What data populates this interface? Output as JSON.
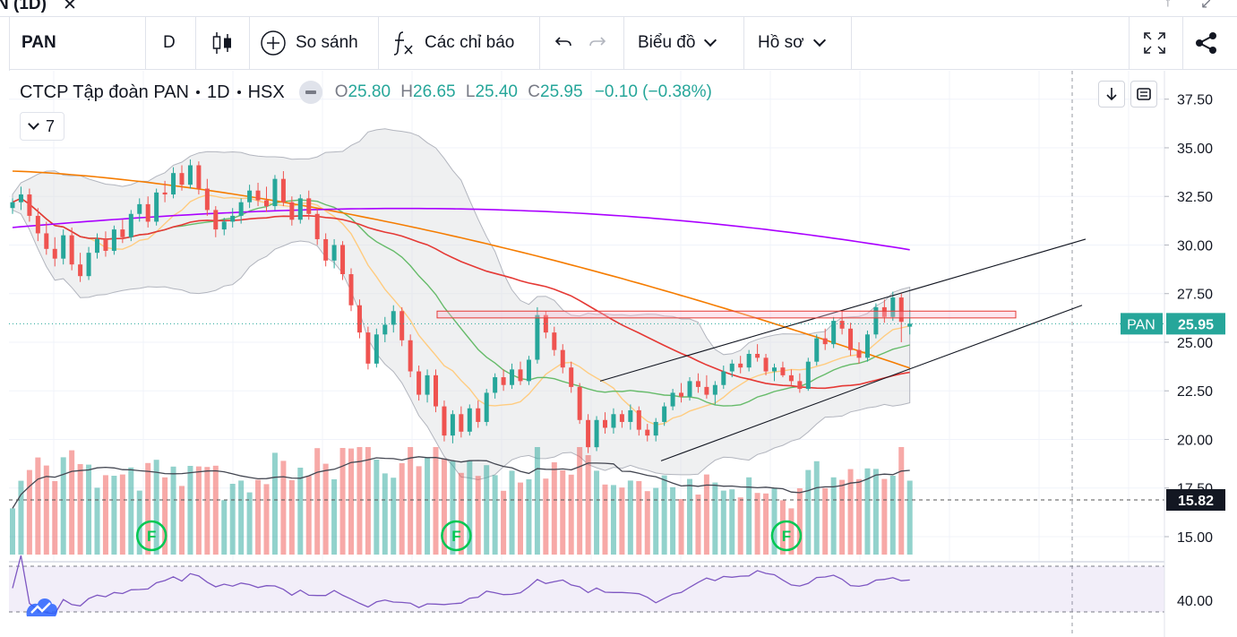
{
  "window": {
    "title": "N (1D)",
    "close_label": "✕",
    "ctrl_a": "↑",
    "ctrl_b": "↙"
  },
  "toolbar": {
    "symbol": "PAN",
    "interval": "D",
    "compare_label": "So sánh",
    "indicators_label": "Các chỉ báo",
    "chart_label": "Biểu đồ",
    "profile_label": "Hồ sơ"
  },
  "legend": {
    "name": "CTCP Tập đoàn PAN",
    "interval": "1D",
    "exchange": "HSX",
    "o_label": "O",
    "o": "25.80",
    "h_label": "H",
    "h": "26.65",
    "l_label": "L",
    "l": "25.40",
    "c_label": "C",
    "c": "25.95",
    "change": "−0.10 (−0.38%)",
    "collapse_count": "7"
  },
  "chart_data": {
    "type": "candlestick",
    "symbol": "PAN",
    "last_price": 25.95,
    "last_price_label": "25.95",
    "volume_ma_label": "15.82",
    "ylim": [
      15.0,
      38.5
    ],
    "price_ticks": [
      "37.50",
      "35.00",
      "32.50",
      "30.00",
      "27.50",
      "25.00",
      "22.50",
      "20.00",
      "17.50",
      "15.00"
    ],
    "rsi_tick": "40.00",
    "event_marker_label": "F",
    "candles": [
      {
        "o": 31.9,
        "h": 32.4,
        "l": 31.6,
        "c": 32.2
      },
      {
        "o": 32.2,
        "h": 33.0,
        "l": 31.8,
        "c": 32.6
      },
      {
        "o": 32.6,
        "h": 32.9,
        "l": 31.2,
        "c": 31.5
      },
      {
        "o": 31.5,
        "h": 31.9,
        "l": 30.2,
        "c": 30.6
      },
      {
        "o": 30.6,
        "h": 31.2,
        "l": 29.5,
        "c": 29.8
      },
      {
        "o": 29.8,
        "h": 30.4,
        "l": 28.9,
        "c": 29.3
      },
      {
        "o": 29.3,
        "h": 30.8,
        "l": 29.0,
        "c": 30.5
      },
      {
        "o": 30.5,
        "h": 30.9,
        "l": 28.7,
        "c": 29.0
      },
      {
        "o": 29.0,
        "h": 29.6,
        "l": 28.1,
        "c": 28.4
      },
      {
        "o": 28.4,
        "h": 29.9,
        "l": 28.2,
        "c": 29.6
      },
      {
        "o": 29.6,
        "h": 30.6,
        "l": 29.3,
        "c": 30.3
      },
      {
        "o": 30.3,
        "h": 30.7,
        "l": 29.4,
        "c": 29.7
      },
      {
        "o": 29.7,
        "h": 31.0,
        "l": 29.5,
        "c": 30.8
      },
      {
        "o": 30.8,
        "h": 31.3,
        "l": 30.1,
        "c": 30.4
      },
      {
        "o": 30.4,
        "h": 31.8,
        "l": 30.2,
        "c": 31.6
      },
      {
        "o": 31.6,
        "h": 32.4,
        "l": 31.2,
        "c": 32.1
      },
      {
        "o": 32.1,
        "h": 32.5,
        "l": 30.9,
        "c": 31.2
      },
      {
        "o": 31.2,
        "h": 32.9,
        "l": 31.0,
        "c": 32.7
      },
      {
        "o": 32.7,
        "h": 33.3,
        "l": 32.2,
        "c": 32.6
      },
      {
        "o": 32.6,
        "h": 34.0,
        "l": 32.4,
        "c": 33.7
      },
      {
        "o": 33.7,
        "h": 34.1,
        "l": 32.8,
        "c": 33.1
      },
      {
        "o": 33.1,
        "h": 34.4,
        "l": 32.9,
        "c": 34.1
      },
      {
        "o": 34.1,
        "h": 34.3,
        "l": 32.6,
        "c": 32.9
      },
      {
        "o": 32.9,
        "h": 33.4,
        "l": 31.5,
        "c": 31.8
      },
      {
        "o": 31.8,
        "h": 32.0,
        "l": 30.4,
        "c": 30.8
      },
      {
        "o": 30.8,
        "h": 31.4,
        "l": 30.5,
        "c": 31.2
      },
      {
        "o": 31.2,
        "h": 31.9,
        "l": 30.9,
        "c": 31.5
      },
      {
        "o": 31.5,
        "h": 32.4,
        "l": 31.1,
        "c": 32.2
      },
      {
        "o": 32.2,
        "h": 33.1,
        "l": 31.9,
        "c": 32.8
      },
      {
        "o": 32.8,
        "h": 33.2,
        "l": 32.0,
        "c": 32.3
      },
      {
        "o": 32.3,
        "h": 33.0,
        "l": 31.7,
        "c": 32.0
      },
      {
        "o": 32.0,
        "h": 33.6,
        "l": 31.8,
        "c": 33.4
      },
      {
        "o": 33.4,
        "h": 33.8,
        "l": 32.0,
        "c": 32.2
      },
      {
        "o": 32.2,
        "h": 32.5,
        "l": 31.0,
        "c": 31.3
      },
      {
        "o": 31.3,
        "h": 32.6,
        "l": 31.1,
        "c": 32.4
      },
      {
        "o": 32.4,
        "h": 32.8,
        "l": 31.3,
        "c": 31.6
      },
      {
        "o": 31.6,
        "h": 31.9,
        "l": 30.0,
        "c": 30.3
      },
      {
        "o": 30.3,
        "h": 30.6,
        "l": 28.9,
        "c": 29.2
      },
      {
        "o": 29.2,
        "h": 30.3,
        "l": 28.8,
        "c": 30.0
      },
      {
        "o": 30.0,
        "h": 30.2,
        "l": 28.2,
        "c": 28.5
      },
      {
        "o": 28.5,
        "h": 28.8,
        "l": 26.6,
        "c": 26.9
      },
      {
        "o": 26.9,
        "h": 27.2,
        "l": 25.2,
        "c": 25.5
      },
      {
        "o": 25.5,
        "h": 25.8,
        "l": 23.6,
        "c": 23.9
      },
      {
        "o": 23.9,
        "h": 25.7,
        "l": 23.7,
        "c": 25.4
      },
      {
        "o": 25.4,
        "h": 26.3,
        "l": 25.0,
        "c": 25.9
      },
      {
        "o": 25.9,
        "h": 26.9,
        "l": 25.5,
        "c": 26.6
      },
      {
        "o": 26.6,
        "h": 26.8,
        "l": 24.8,
        "c": 25.1
      },
      {
        "o": 25.1,
        "h": 25.4,
        "l": 23.2,
        "c": 23.5
      },
      {
        "o": 23.5,
        "h": 23.8,
        "l": 22.0,
        "c": 22.3
      },
      {
        "o": 22.3,
        "h": 23.6,
        "l": 21.9,
        "c": 23.3
      },
      {
        "o": 23.3,
        "h": 23.6,
        "l": 21.4,
        "c": 21.7
      },
      {
        "o": 21.7,
        "h": 22.0,
        "l": 19.9,
        "c": 20.2
      },
      {
        "o": 20.2,
        "h": 21.5,
        "l": 19.8,
        "c": 21.3
      },
      {
        "o": 21.3,
        "h": 21.7,
        "l": 20.1,
        "c": 20.4
      },
      {
        "o": 20.4,
        "h": 21.8,
        "l": 20.2,
        "c": 21.6
      },
      {
        "o": 21.6,
        "h": 22.0,
        "l": 20.6,
        "c": 20.9
      },
      {
        "o": 20.9,
        "h": 22.6,
        "l": 20.7,
        "c": 22.4
      },
      {
        "o": 22.4,
        "h": 23.4,
        "l": 22.1,
        "c": 23.2
      },
      {
        "o": 23.2,
        "h": 23.6,
        "l": 22.5,
        "c": 22.8
      },
      {
        "o": 22.8,
        "h": 23.9,
        "l": 22.6,
        "c": 23.6
      },
      {
        "o": 23.6,
        "h": 24.0,
        "l": 22.8,
        "c": 23.0
      },
      {
        "o": 23.0,
        "h": 24.3,
        "l": 22.8,
        "c": 24.1
      },
      {
        "o": 24.1,
        "h": 26.8,
        "l": 23.9,
        "c": 26.4
      },
      {
        "o": 26.4,
        "h": 26.6,
        "l": 25.2,
        "c": 25.5
      },
      {
        "o": 25.5,
        "h": 25.8,
        "l": 24.3,
        "c": 24.6
      },
      {
        "o": 24.6,
        "h": 24.9,
        "l": 23.4,
        "c": 23.7
      },
      {
        "o": 23.7,
        "h": 24.0,
        "l": 22.4,
        "c": 22.7
      },
      {
        "o": 22.7,
        "h": 22.9,
        "l": 20.8,
        "c": 21.0
      },
      {
        "o": 21.0,
        "h": 21.3,
        "l": 19.3,
        "c": 19.6
      },
      {
        "o": 19.6,
        "h": 21.2,
        "l": 19.4,
        "c": 21.0
      },
      {
        "o": 21.0,
        "h": 21.4,
        "l": 20.3,
        "c": 20.6
      },
      {
        "o": 20.6,
        "h": 21.6,
        "l": 20.3,
        "c": 21.3
      },
      {
        "o": 21.3,
        "h": 21.5,
        "l": 20.6,
        "c": 20.9
      },
      {
        "o": 20.9,
        "h": 21.8,
        "l": 20.5,
        "c": 21.5
      },
      {
        "o": 21.5,
        "h": 21.7,
        "l": 20.2,
        "c": 20.5
      },
      {
        "o": 20.5,
        "h": 20.8,
        "l": 19.9,
        "c": 20.2
      },
      {
        "o": 20.2,
        "h": 21.1,
        "l": 19.9,
        "c": 20.9
      },
      {
        "o": 20.9,
        "h": 21.9,
        "l": 20.7,
        "c": 21.7
      },
      {
        "o": 21.7,
        "h": 22.6,
        "l": 21.5,
        "c": 22.4
      },
      {
        "o": 22.4,
        "h": 22.9,
        "l": 21.9,
        "c": 22.2
      },
      {
        "o": 22.2,
        "h": 23.2,
        "l": 22.0,
        "c": 23.0
      },
      {
        "o": 23.0,
        "h": 23.4,
        "l": 22.4,
        "c": 22.7
      },
      {
        "o": 22.7,
        "h": 23.3,
        "l": 22.1,
        "c": 22.3
      },
      {
        "o": 22.3,
        "h": 23.0,
        "l": 21.8,
        "c": 22.8
      },
      {
        "o": 22.8,
        "h": 23.8,
        "l": 22.6,
        "c": 23.5
      },
      {
        "o": 23.5,
        "h": 24.1,
        "l": 23.2,
        "c": 23.9
      },
      {
        "o": 23.9,
        "h": 24.3,
        "l": 23.4,
        "c": 23.7
      },
      {
        "o": 23.7,
        "h": 24.6,
        "l": 23.5,
        "c": 24.4
      },
      {
        "o": 24.4,
        "h": 24.9,
        "l": 24.0,
        "c": 24.2
      },
      {
        "o": 24.2,
        "h": 24.4,
        "l": 23.3,
        "c": 23.5
      },
      {
        "o": 23.5,
        "h": 23.9,
        "l": 23.0,
        "c": 23.7
      },
      {
        "o": 23.7,
        "h": 24.0,
        "l": 23.2,
        "c": 23.3
      },
      {
        "o": 23.3,
        "h": 23.6,
        "l": 22.8,
        "c": 23.0
      },
      {
        "o": 23.0,
        "h": 23.4,
        "l": 22.4,
        "c": 22.6
      },
      {
        "o": 22.6,
        "h": 24.2,
        "l": 22.5,
        "c": 24.0
      },
      {
        "o": 24.0,
        "h": 25.4,
        "l": 23.8,
        "c": 25.2
      },
      {
        "o": 25.2,
        "h": 25.7,
        "l": 24.6,
        "c": 24.9
      },
      {
        "o": 24.9,
        "h": 26.3,
        "l": 24.7,
        "c": 26.1
      },
      {
        "o": 26.1,
        "h": 26.6,
        "l": 25.4,
        "c": 25.7
      },
      {
        "o": 25.7,
        "h": 26.0,
        "l": 24.3,
        "c": 24.6
      },
      {
        "o": 24.6,
        "h": 25.0,
        "l": 23.9,
        "c": 24.2
      },
      {
        "o": 24.2,
        "h": 25.6,
        "l": 24.0,
        "c": 25.4
      },
      {
        "o": 25.4,
        "h": 27.0,
        "l": 25.2,
        "c": 26.8
      },
      {
        "o": 26.8,
        "h": 27.2,
        "l": 26.0,
        "c": 26.3
      },
      {
        "o": 26.3,
        "h": 27.6,
        "l": 26.1,
        "c": 27.3
      },
      {
        "o": 27.3,
        "h": 27.5,
        "l": 25.0,
        "c": 26.05
      },
      {
        "o": 25.8,
        "h": 26.65,
        "l": 25.4,
        "c": 25.95
      }
    ]
  }
}
